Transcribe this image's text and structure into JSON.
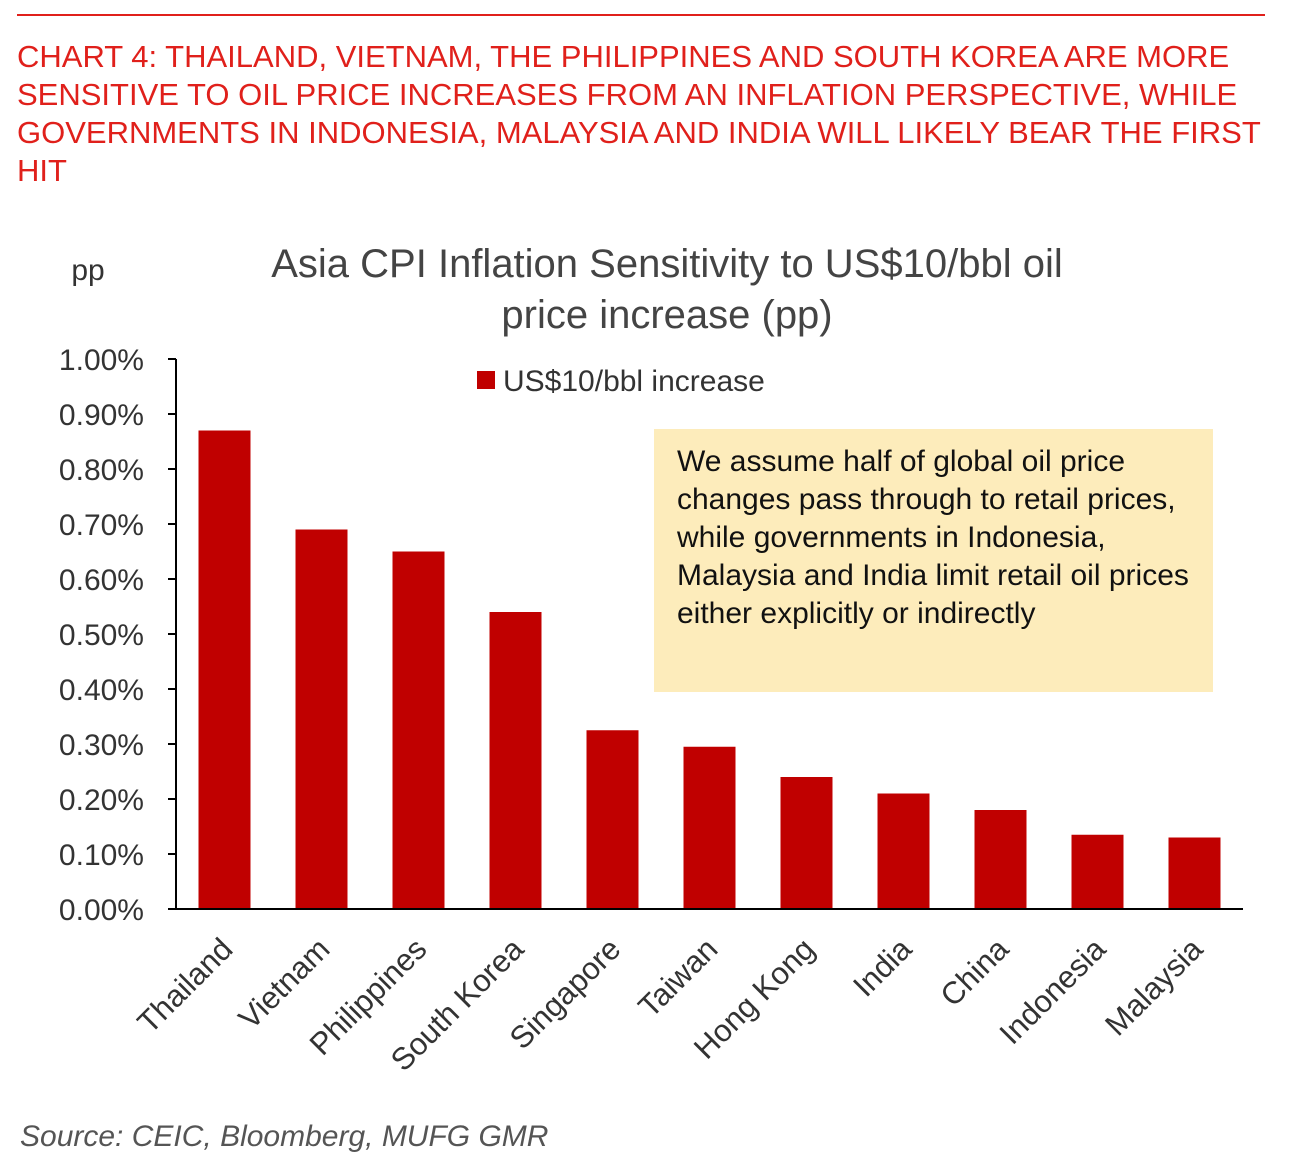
{
  "headline": "CHART 4: THAILAND, VIETNAM, THE PHILIPPINES AND SOUTH KOREA ARE MORE SENSITIVE TO OIL PRICE INCREASES FROM AN INFLATION PERSPECTIVE, WHILE GOVERNMENTS IN INDONESIA, MALAYSIA AND INDIA WILL LIKELY BEAR THE FIRST HIT",
  "unit_label": "pp",
  "annotation": "We assume half of global oil price changes pass through to retail prices, while governments in Indonesia, Malaysia and India limit retail oil prices either explicitly or indirectly",
  "source": "Source: CEIC, Bloomberg, MUFG GMR",
  "colors": {
    "accent": "#e0201b",
    "bar": "#c00000",
    "callout_bg": "#fdecbb"
  },
  "chart_data": {
    "type": "bar",
    "title_lines": [
      "Asia CPI Inflation Sensitivity to US$10/bbl oil",
      "price increase (pp)"
    ],
    "xlabel": "",
    "ylabel": "pp",
    "categories": [
      "Thailand",
      "Vietnam",
      "Philippines",
      "South Korea",
      "Singapore",
      "Taiwan",
      "Hong Kong",
      "India",
      "China",
      "Indonesia",
      "Malaysia"
    ],
    "series": [
      {
        "name": "US$10/bbl increase",
        "values": [
          0.87,
          0.69,
          0.65,
          0.54,
          0.325,
          0.295,
          0.24,
          0.21,
          0.18,
          0.135,
          0.13
        ]
      }
    ],
    "ylim": [
      0,
      1.0
    ],
    "yticks": [
      0,
      0.1,
      0.2,
      0.3,
      0.4,
      0.5,
      0.6,
      0.7,
      0.8,
      0.9,
      1.0
    ],
    "ytick_labels": [
      "0.00%",
      "0.10%",
      "0.20%",
      "0.30%",
      "0.40%",
      "0.50%",
      "0.60%",
      "0.70%",
      "0.80%",
      "0.90%",
      "1.00%"
    ],
    "grid": false,
    "legend_position": "top-center"
  }
}
